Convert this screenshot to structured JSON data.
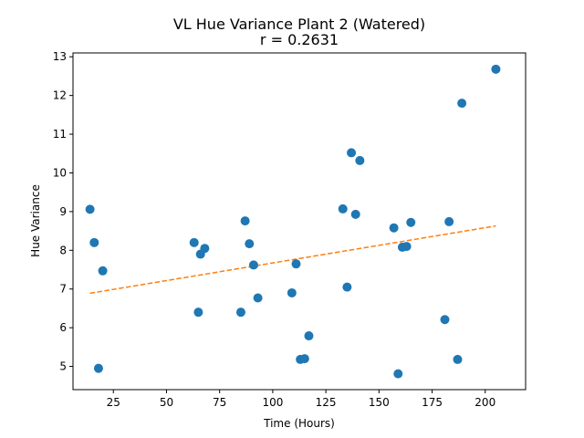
{
  "chart_data": {
    "type": "scatter",
    "title": "VL Hue Variance Plant 2 (Watered)",
    "subtitle": "r = 0.2631",
    "xlabel": "Time (Hours)",
    "ylabel": "Hue Variance",
    "xlim": [
      6,
      219
    ],
    "ylim": [
      4.4,
      13.1
    ],
    "xticks": [
      25,
      50,
      75,
      100,
      125,
      150,
      175,
      200
    ],
    "yticks": [
      5,
      6,
      7,
      8,
      9,
      10,
      11,
      12,
      13
    ],
    "grid": false,
    "colors": {
      "points": "#1f77b4",
      "trend": "#ff7f0e"
    },
    "series": [
      {
        "type": "scatter",
        "points": [
          [
            14,
            9.06
          ],
          [
            16,
            8.2
          ],
          [
            18,
            4.95
          ],
          [
            20,
            7.47
          ],
          [
            63,
            8.2
          ],
          [
            65,
            6.4
          ],
          [
            66,
            7.9
          ],
          [
            68,
            8.05
          ],
          [
            85,
            6.4
          ],
          [
            87,
            8.76
          ],
          [
            89,
            8.17
          ],
          [
            91,
            7.62
          ],
          [
            93,
            6.77
          ],
          [
            109,
            6.9
          ],
          [
            111,
            7.65
          ],
          [
            113,
            5.18
          ],
          [
            115,
            5.2
          ],
          [
            117,
            5.79
          ],
          [
            133,
            9.07
          ],
          [
            135,
            7.05
          ],
          [
            137,
            10.52
          ],
          [
            139,
            8.93
          ],
          [
            141,
            10.32
          ],
          [
            157,
            8.58
          ],
          [
            159,
            4.81
          ],
          [
            161,
            8.08
          ],
          [
            163,
            8.1
          ],
          [
            165,
            8.72
          ],
          [
            181,
            6.21
          ],
          [
            183,
            8.74
          ],
          [
            187,
            5.18
          ],
          [
            189,
            11.8
          ],
          [
            205,
            12.68
          ]
        ]
      },
      {
        "type": "line",
        "style": "dashed",
        "points": [
          [
            14,
            6.89
          ],
          [
            205,
            8.63
          ]
        ]
      }
    ]
  }
}
